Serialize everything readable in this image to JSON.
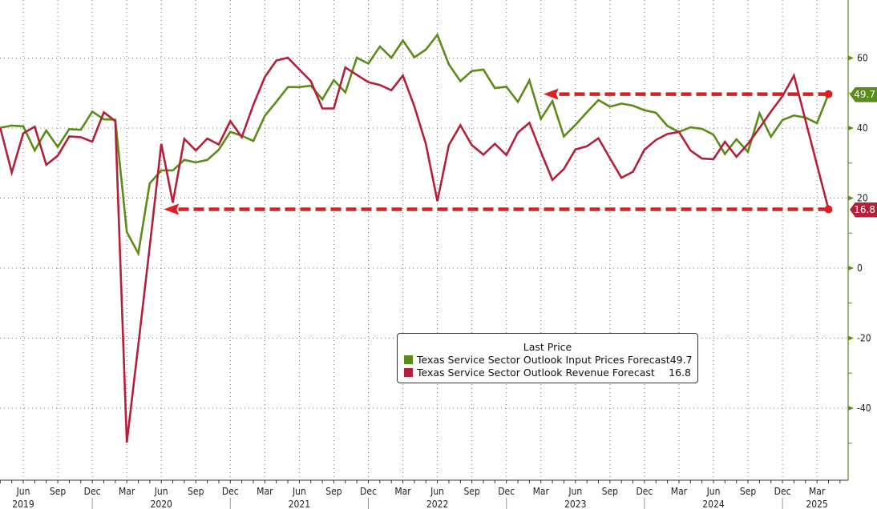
{
  "chart_data": {
    "type": "line",
    "title": "",
    "xlabel": "",
    "ylabel": "",
    "ylim": [
      -60,
      75
    ],
    "y_ticks": [
      60,
      40,
      20,
      0,
      -20,
      -40
    ],
    "y_axis_side": "right",
    "grid": true,
    "start_month": "2019-04",
    "frequency": "monthly",
    "x_ticks": [
      {
        "i": 2,
        "label": "Jun"
      },
      {
        "i": 5,
        "label": "Sep"
      },
      {
        "i": 8,
        "label": "Dec"
      },
      {
        "i": 11,
        "label": "Mar"
      },
      {
        "i": 14,
        "label": "Jun"
      },
      {
        "i": 17,
        "label": "Sep"
      },
      {
        "i": 20,
        "label": "Dec"
      },
      {
        "i": 23,
        "label": "Mar"
      },
      {
        "i": 26,
        "label": "Jun"
      },
      {
        "i": 29,
        "label": "Sep"
      },
      {
        "i": 32,
        "label": "Dec"
      },
      {
        "i": 35,
        "label": "Mar"
      },
      {
        "i": 38,
        "label": "Jun"
      },
      {
        "i": 41,
        "label": "Sep"
      },
      {
        "i": 44,
        "label": "Dec"
      },
      {
        "i": 47,
        "label": "Mar"
      },
      {
        "i": 50,
        "label": "Jun"
      },
      {
        "i": 53,
        "label": "Sep"
      },
      {
        "i": 56,
        "label": "Dec"
      },
      {
        "i": 59,
        "label": "Mar"
      },
      {
        "i": 62,
        "label": "Jun"
      },
      {
        "i": 65,
        "label": "Sep"
      },
      {
        "i": 68,
        "label": "Dec"
      },
      {
        "i": 71,
        "label": "Mar"
      }
    ],
    "year_labels": [
      {
        "i": 2,
        "label": "2019"
      },
      {
        "i": 14,
        "label": "2020"
      },
      {
        "i": 26,
        "label": "2021"
      },
      {
        "i": 38,
        "label": "2022"
      },
      {
        "i": 50,
        "label": "2023"
      },
      {
        "i": 62,
        "label": "2024"
      },
      {
        "i": 71,
        "label": "2025"
      }
    ],
    "series": [
      {
        "name": "Texas Service Sector Outlook Input Prices Forecast",
        "color": "#5b8c1a",
        "last": "49.7",
        "values": [
          40.1,
          40.7,
          40.5,
          33.6,
          39.3,
          34.6,
          39.7,
          39.5,
          44.7,
          42.5,
          42.4,
          10.3,
          4.2,
          24.2,
          27.9,
          27.9,
          30.9,
          30.2,
          30.9,
          33.8,
          38.9,
          37.8,
          36.3,
          43.5,
          47.5,
          51.7,
          51.7,
          52.1,
          48.2,
          53.7,
          50.2,
          60.1,
          58.4,
          63.3,
          60.1,
          65.0,
          60.2,
          62.4,
          66.6,
          58.2,
          53.4,
          56.3,
          56.7,
          51.4,
          51.8,
          47.5,
          53.6,
          42.6,
          47.7,
          37.6,
          40.9,
          44.5,
          48.0,
          46.1,
          47.0,
          46.4,
          45.1,
          44.4,
          40.6,
          38.9,
          40.2,
          39.8,
          38.1,
          32.6,
          36.8,
          33.2,
          44.2,
          37.5,
          42.3,
          43.6,
          43.0,
          41.4,
          49.7
        ]
      },
      {
        "name": "Texas Service Sector Outlook Revenue Forecast",
        "color": "#b3203a",
        "last": "16.8",
        "values": [
          40.1,
          27.3,
          38.5,
          40.4,
          29.5,
          32.1,
          37.6,
          37.4,
          36.1,
          44.5,
          42.0,
          -49.8,
          -22.0,
          6.2,
          35.5,
          18.7,
          36.9,
          33.6,
          37.0,
          35.3,
          42.0,
          37.4,
          46.6,
          54.6,
          59.3,
          60.1,
          56.7,
          53.4,
          45.6,
          45.6,
          57.3,
          55.2,
          53.1,
          52.3,
          50.8,
          55.0,
          46.2,
          35.5,
          19.1,
          35.1,
          40.8,
          35.1,
          32.4,
          35.5,
          32.3,
          38.7,
          41.5,
          33.2,
          25.2,
          28.3,
          33.9,
          34.8,
          37.1,
          31.4,
          25.8,
          27.5,
          33.8,
          36.6,
          38.3,
          38.9,
          33.6,
          31.3,
          31.1,
          36.1,
          31.8,
          35.5,
          40.0,
          44.7,
          49.1,
          55.0,
          42.2,
          29.5,
          16.8
        ]
      }
    ],
    "annotations": [
      {
        "type": "dashed-arrow",
        "value": 49.7,
        "from_i": 72,
        "to_i": 47,
        "color": "#dd1f1f"
      },
      {
        "type": "dashed-arrow",
        "value": 16.8,
        "from_i": 72,
        "to_i": 14,
        "color": "#dd1f1f"
      }
    ],
    "legend": {
      "title": "Last Price",
      "placement": "bottom-center",
      "entries": [
        {
          "label": "Texas Service Sector Outlook Input Prices Forecast",
          "value": "49.7"
        },
        {
          "label": "Texas Service Sector Outlook Revenue Forecast",
          "value": "16.8"
        }
      ]
    }
  }
}
